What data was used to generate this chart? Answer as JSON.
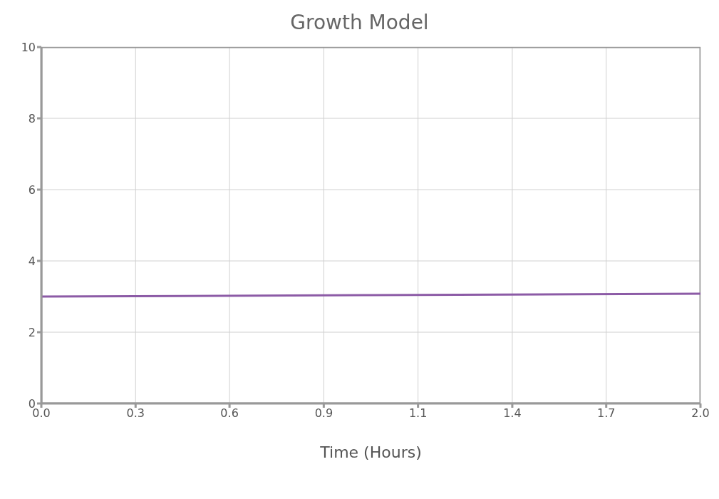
{
  "chart_data": {
    "type": "line",
    "title": "Growth Model",
    "xlabel": "Time (Hours)",
    "series": [
      {
        "color": "#8c5ba6",
        "x": [
          0,
          1,
          2
        ],
        "values": [
          3.0,
          3.04,
          3.08
        ]
      }
    ],
    "xlim": [
      0,
      2
    ],
    "xticks": [
      {
        "value": 0,
        "label": "0.0"
      },
      {
        "value": 0.286,
        "label": "0.3"
      },
      {
        "value": 0.571,
        "label": "0.6"
      },
      {
        "value": 0.857,
        "label": "0.9"
      },
      {
        "value": 1.143,
        "label": "1.1"
      },
      {
        "value": 1.429,
        "label": "1.4"
      },
      {
        "value": 1.714,
        "label": "1.7"
      },
      {
        "value": 2,
        "label": "2.0"
      }
    ],
    "ylim": [
      0,
      10
    ],
    "yticks": [
      0,
      2,
      4,
      6,
      8,
      10
    ],
    "grid": true,
    "marker": "none",
    "line_style": "solid"
  }
}
